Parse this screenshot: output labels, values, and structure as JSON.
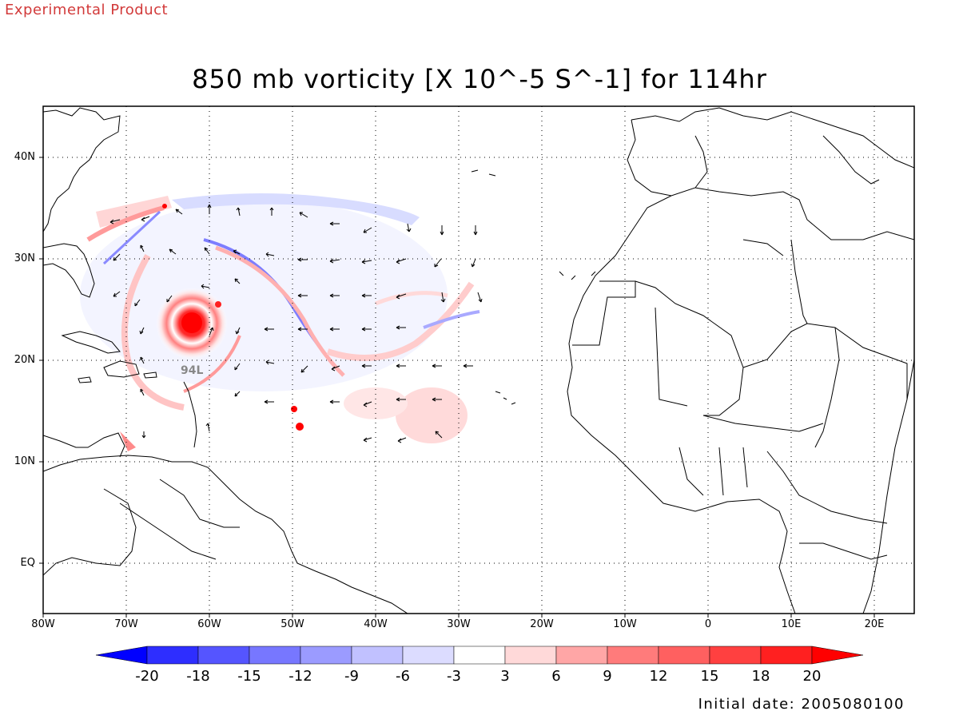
{
  "header": {
    "product_label": "Experimental Product",
    "title": "850 mb vorticity [X 10^-5 S^-1] for 114hr",
    "initial_date": "Initial date: 2005080100"
  },
  "storm_label": "94L",
  "map": {
    "lon_range": [
      -80,
      25
    ],
    "lat_range": [
      -5,
      45
    ],
    "lon_ticks": [
      "80W",
      "70W",
      "60W",
      "50W",
      "40W",
      "30W",
      "20W",
      "10W",
      "0",
      "10E",
      "20E"
    ],
    "lat_ticks": [
      "40N",
      "30N",
      "20N",
      "10N",
      "EQ"
    ],
    "grid": true
  },
  "colorbar": {
    "labels": [
      "-20",
      "-18",
      "-15",
      "-12",
      "-9",
      "-6",
      "-3",
      "3",
      "6",
      "9",
      "12",
      "15",
      "18",
      "20"
    ],
    "colors": [
      "#0000ff",
      "#2e2eff",
      "#5555ff",
      "#7777ff",
      "#9b9bff",
      "#c1c1ff",
      "#dcdcff",
      "#ffffff",
      "#ffd9d9",
      "#ffa6a6",
      "#ff7b7b",
      "#ff6060",
      "#ff4040",
      "#ff2020",
      "#ff0000"
    ]
  }
}
